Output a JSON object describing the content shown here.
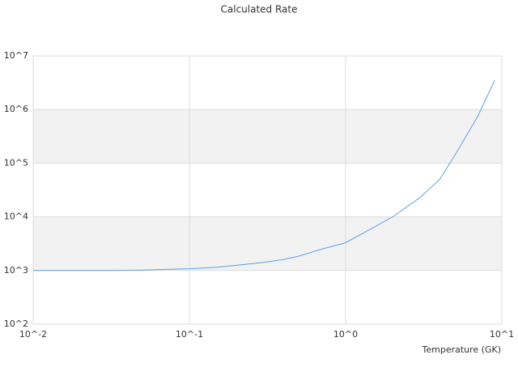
{
  "chart_data": {
    "type": "line",
    "title": "Calculated Rate",
    "x_label": "Temperature (GK)",
    "x": [
      0.01,
      0.03,
      0.05,
      0.1,
      0.15,
      0.2,
      0.3,
      0.4,
      0.5,
      0.7,
      1.0,
      1.5,
      2,
      3,
      4,
      5,
      7,
      9
    ],
    "series": [
      {
        "name": "Calculated Rate",
        "color": "#5aa0e6",
        "values": [
          1000,
          1000,
          1020,
          1080,
          1150,
          1250,
          1420,
          1600,
          1850,
          2500,
          3300,
          6300,
          10000,
          23000,
          50000,
          140000,
          740000,
          3500000
        ]
      }
    ],
    "xlog": true,
    "ylog": true,
    "xlim": [
      0.01,
      10
    ],
    "ylim": [
      100,
      10000000
    ],
    "xticks": [
      {
        "value": 0.01,
        "label": "10^-2"
      },
      {
        "value": 0.1,
        "label": "10^-1"
      },
      {
        "value": 1,
        "label": "10^0"
      },
      {
        "value": 10,
        "label": "10^1"
      }
    ],
    "yticks": [
      {
        "value": 100,
        "label": "10^2"
      },
      {
        "value": 1000,
        "label": "10^3"
      },
      {
        "value": 10000,
        "label": "10^4"
      },
      {
        "value": 100000,
        "label": "10^5"
      },
      {
        "value": 1000000,
        "label": "10^6"
      },
      {
        "value": 10000000,
        "label": "10^7"
      }
    ],
    "grid": true
  }
}
